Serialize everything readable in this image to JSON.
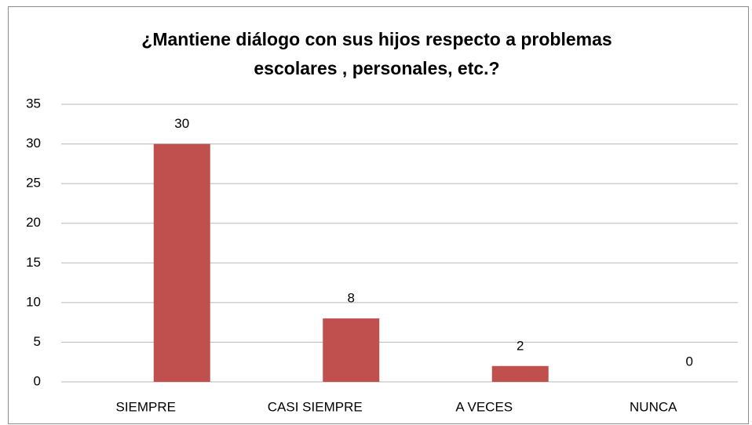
{
  "chart_data": {
    "type": "bar",
    "title": [
      "¿Mantiene diálogo con sus hijos respecto a problemas",
      "escolares , personales, etc.?"
    ],
    "categories": [
      "SIEMPRE",
      "CASI SIEMPRE",
      "A VECES",
      "NUNCA"
    ],
    "values": [
      30,
      8,
      2,
      0
    ],
    "color": "#c0504d",
    "ylim": [
      0,
      35
    ],
    "yticks": [
      0,
      5,
      10,
      15,
      20,
      25,
      30,
      35
    ],
    "grid": true
  }
}
